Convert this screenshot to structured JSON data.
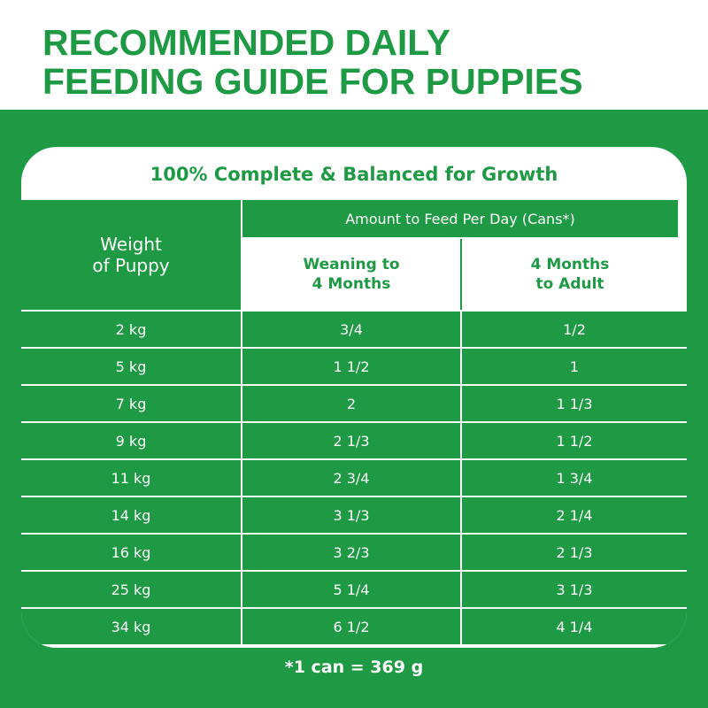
{
  "title": {
    "line1": "RECOMMENDED DAILY",
    "line2": "FEEDING GUIDE FOR PUPPIES"
  },
  "panel": {
    "heading": "100% Complete & Balanced for Growth"
  },
  "table": {
    "weight_header_line1": "Weight",
    "weight_header_line2": "of Puppy",
    "amount_header": "Amount to Feed Per Day (Cans*)",
    "col1_line1": "Weaning to",
    "col1_line2": "4 Months",
    "col2_line1": "4 Months",
    "col2_line2": "to Adult",
    "rows": [
      {
        "weight": "2 kg",
        "weaning": "3/4",
        "adult": "1/2"
      },
      {
        "weight": "5 kg",
        "weaning": "1 1/2",
        "adult": "1"
      },
      {
        "weight": "7 kg",
        "weaning": "2",
        "adult": "1 1/3"
      },
      {
        "weight": "9 kg",
        "weaning": "2 1/3",
        "adult": "1 1/2"
      },
      {
        "weight": "11 kg",
        "weaning": "2 3/4",
        "adult": "1 3/4"
      },
      {
        "weight": "14 kg",
        "weaning": "3 1/3",
        "adult": "2 1/4"
      },
      {
        "weight": "16 kg",
        "weaning": "3 2/3",
        "adult": "2 1/3"
      },
      {
        "weight": "25 kg",
        "weaning": "5 1/4",
        "adult": "3 1/3"
      },
      {
        "weight": "34 kg",
        "weaning": "6 1/2",
        "adult": "4 1/4"
      }
    ]
  },
  "footnote": "*1 can = 369 g",
  "colors": {
    "brand_green": "#1d9a43",
    "white": "#ffffff"
  }
}
